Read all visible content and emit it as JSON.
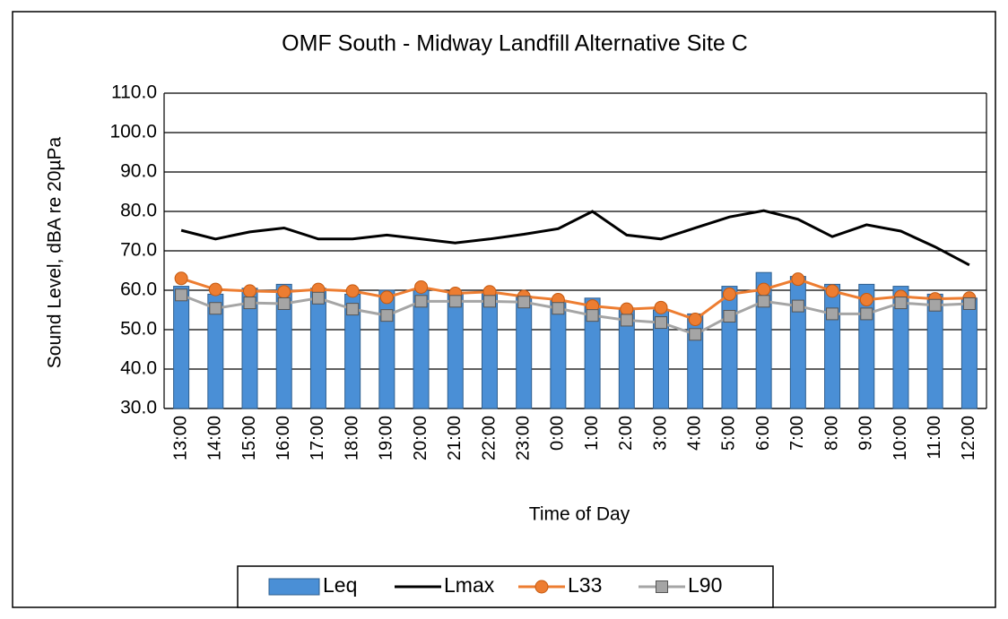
{
  "chart_data": {
    "type": "combo",
    "title": "OMF South - Midway Landfill Alternative Site C",
    "y_label": "Sound Level, dBA re 20µPa",
    "x_label": "Time of Day",
    "categories": [
      "13:00",
      "14:00",
      "15:00",
      "16:00",
      "17:00",
      "18:00",
      "19:00",
      "20:00",
      "21:00",
      "22:00",
      "23:00",
      "0:00",
      "1:00",
      "2:00",
      "3:00",
      "4:00",
      "5:00",
      "6:00",
      "7:00",
      "8:00",
      "9:00",
      "10:00",
      "11:00",
      "12:00"
    ],
    "series": [
      {
        "name": "Leq",
        "kind": "bar",
        "color": "#4a8fd6",
        "values": [
          61,
          59,
          60.5,
          61.5,
          60.5,
          59,
          60,
          60,
          59.5,
          59.5,
          58.5,
          57.5,
          58,
          55.5,
          55,
          54,
          61,
          64.5,
          63.5,
          61.5,
          61.5,
          61,
          59,
          58
        ]
      },
      {
        "name": "Lmax",
        "kind": "line",
        "color": "#000000",
        "values": [
          75.2,
          73,
          74.8,
          75.8,
          73,
          73,
          74,
          73,
          72,
          73,
          74.2,
          75.6,
          80,
          74,
          73,
          75.8,
          78.6,
          80.2,
          78,
          73.6,
          76.6,
          75,
          71,
          66.4
        ]
      },
      {
        "name": "L33",
        "kind": "line",
        "marker": "circle",
        "color": "#ed7d31",
        "values": [
          63,
          60.2,
          59.8,
          59.6,
          60.2,
          59.8,
          58.2,
          60.8,
          59.2,
          59.6,
          58.4,
          57.6,
          56,
          55.2,
          55.6,
          52.6,
          59,
          60.2,
          62.8,
          59.8,
          57.6,
          58.4,
          57.8,
          58
        ]
      },
      {
        "name": "L90",
        "kind": "line",
        "marker": "square",
        "color": "#a5a5a5",
        "values": [
          58.8,
          55.4,
          56.8,
          56.6,
          58,
          55.2,
          53.6,
          57.2,
          57.2,
          57.2,
          57,
          55.4,
          53.6,
          52.4,
          51.8,
          48.8,
          53.4,
          57.2,
          56,
          54,
          54,
          56.8,
          56.2,
          56.6
        ]
      }
    ],
    "ylim": [
      30,
      110
    ],
    "yticks": [
      {
        "value": 30,
        "label": "30.0"
      },
      {
        "value": 40,
        "label": "40.0"
      },
      {
        "value": 50,
        "label": "50.0"
      },
      {
        "value": 60,
        "label": "60.0"
      },
      {
        "value": 70,
        "label": "70.0"
      },
      {
        "value": 80,
        "label": "80.0"
      },
      {
        "value": 90,
        "label": "90.0"
      },
      {
        "value": 100,
        "label": "100.0"
      },
      {
        "value": 110,
        "label": "110.0"
      }
    ],
    "grid": true,
    "legend": "bottom"
  }
}
